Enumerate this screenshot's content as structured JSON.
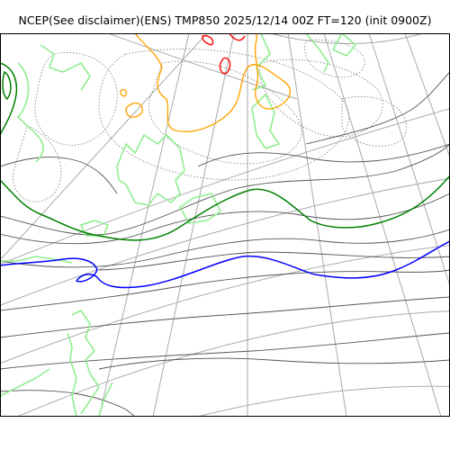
{
  "map": {
    "title": "NCEP(See disclaimer)(ENS) TMP850 2025/12/14 00Z FT=120 (init 0900Z)",
    "colors": {
      "graticule": "#aaaaaa",
      "contour_thin": "#555555",
      "contour_dotted": "#777777",
      "coastline": "#90ee90",
      "isotherm_0c": "#008000",
      "isotherm_minus6c": "#0000ff",
      "isotherm_minus30c": "#ffa500",
      "isotherm_minus36c": "#ff0000",
      "frame": "#000000"
    }
  }
}
